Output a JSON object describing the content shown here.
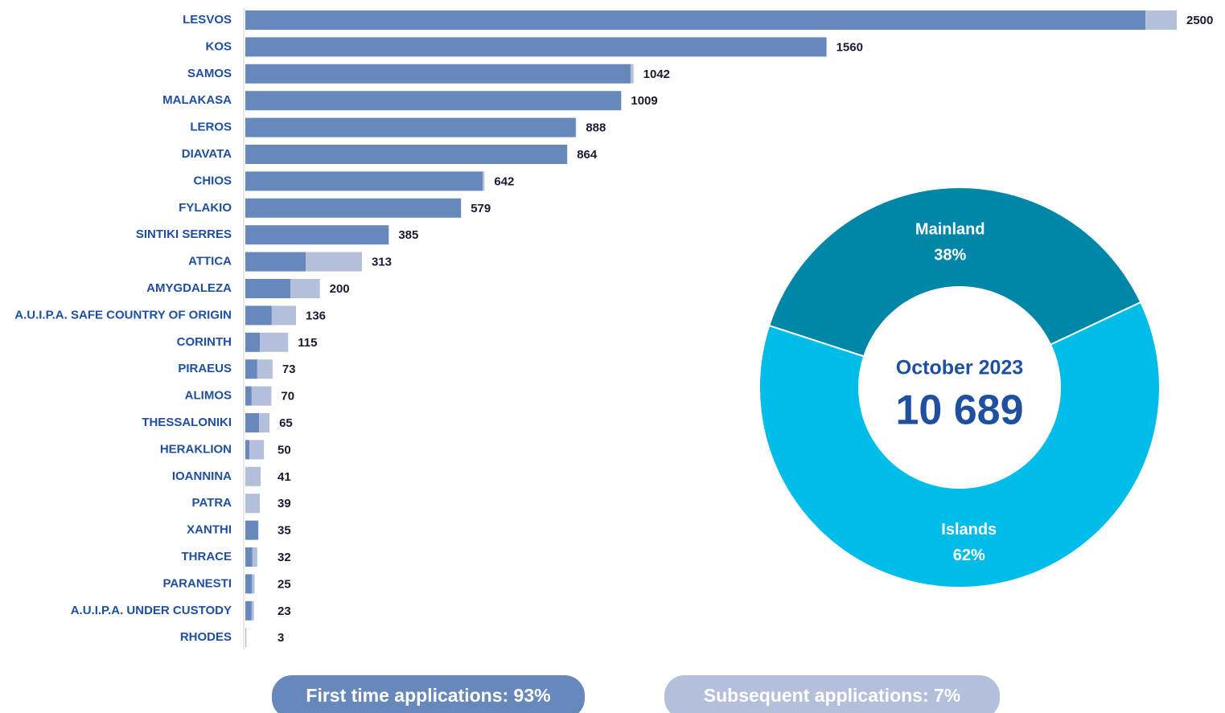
{
  "chart_data": [
    {
      "type": "bar",
      "orientation": "horizontal",
      "stacked": true,
      "categories": [
        "LESVOS",
        "KOS",
        "SAMOS",
        "MALAKASA",
        "LEROS",
        "DIAVATA",
        "CHIOS",
        "FYLAKIO",
        "SINTIKI SERRES",
        "ATTICA",
        "AMYGDALEZA",
        "A.U.I.P.A. SAFE COUNTRY OF ORIGIN",
        "CORINTH",
        "PIRAEUS",
        "ALIMOS",
        "THESSALONIKI",
        "HERAKLION",
        "IOANNINA",
        "PATRA",
        "XANTHI",
        "THRACE",
        "PARANESTI",
        "A.U.I.P.A. UNDER CUSTODY",
        "RHODES"
      ],
      "series": [
        {
          "name": "First time applications: 93%",
          "color": "#6688bb",
          "values": [
            2416,
            1560,
            1034,
            1009,
            887,
            864,
            637,
            579,
            385,
            162,
            121,
            71,
            39,
            32,
            17,
            37,
            11,
            0,
            0,
            35,
            19,
            18,
            17,
            0
          ]
        },
        {
          "name": "Subsequent applications: 7%",
          "color": "#b3bfdb",
          "values": [
            84,
            0,
            8,
            0,
            1,
            0,
            5,
            0,
            0,
            151,
            79,
            65,
            76,
            41,
            53,
            28,
            39,
            41,
            39,
            0,
            13,
            7,
            6,
            3
          ]
        }
      ],
      "totals": [
        2500,
        1560,
        1042,
        1009,
        888,
        864,
        642,
        579,
        385,
        313,
        200,
        136,
        115,
        73,
        70,
        65,
        50,
        41,
        39,
        35,
        32,
        25,
        23,
        3
      ],
      "xlim": [
        0,
        2500
      ]
    },
    {
      "type": "pie",
      "donut": true,
      "categories": [
        "Mainland",
        "Islands"
      ],
      "values": [
        38,
        62
      ],
      "value_labels": [
        "38%",
        "62%"
      ],
      "colors": [
        "#0086a6",
        "#00bce8"
      ],
      "center_title": "October 2023",
      "total": 10689,
      "total_label": "10 689"
    }
  ]
}
